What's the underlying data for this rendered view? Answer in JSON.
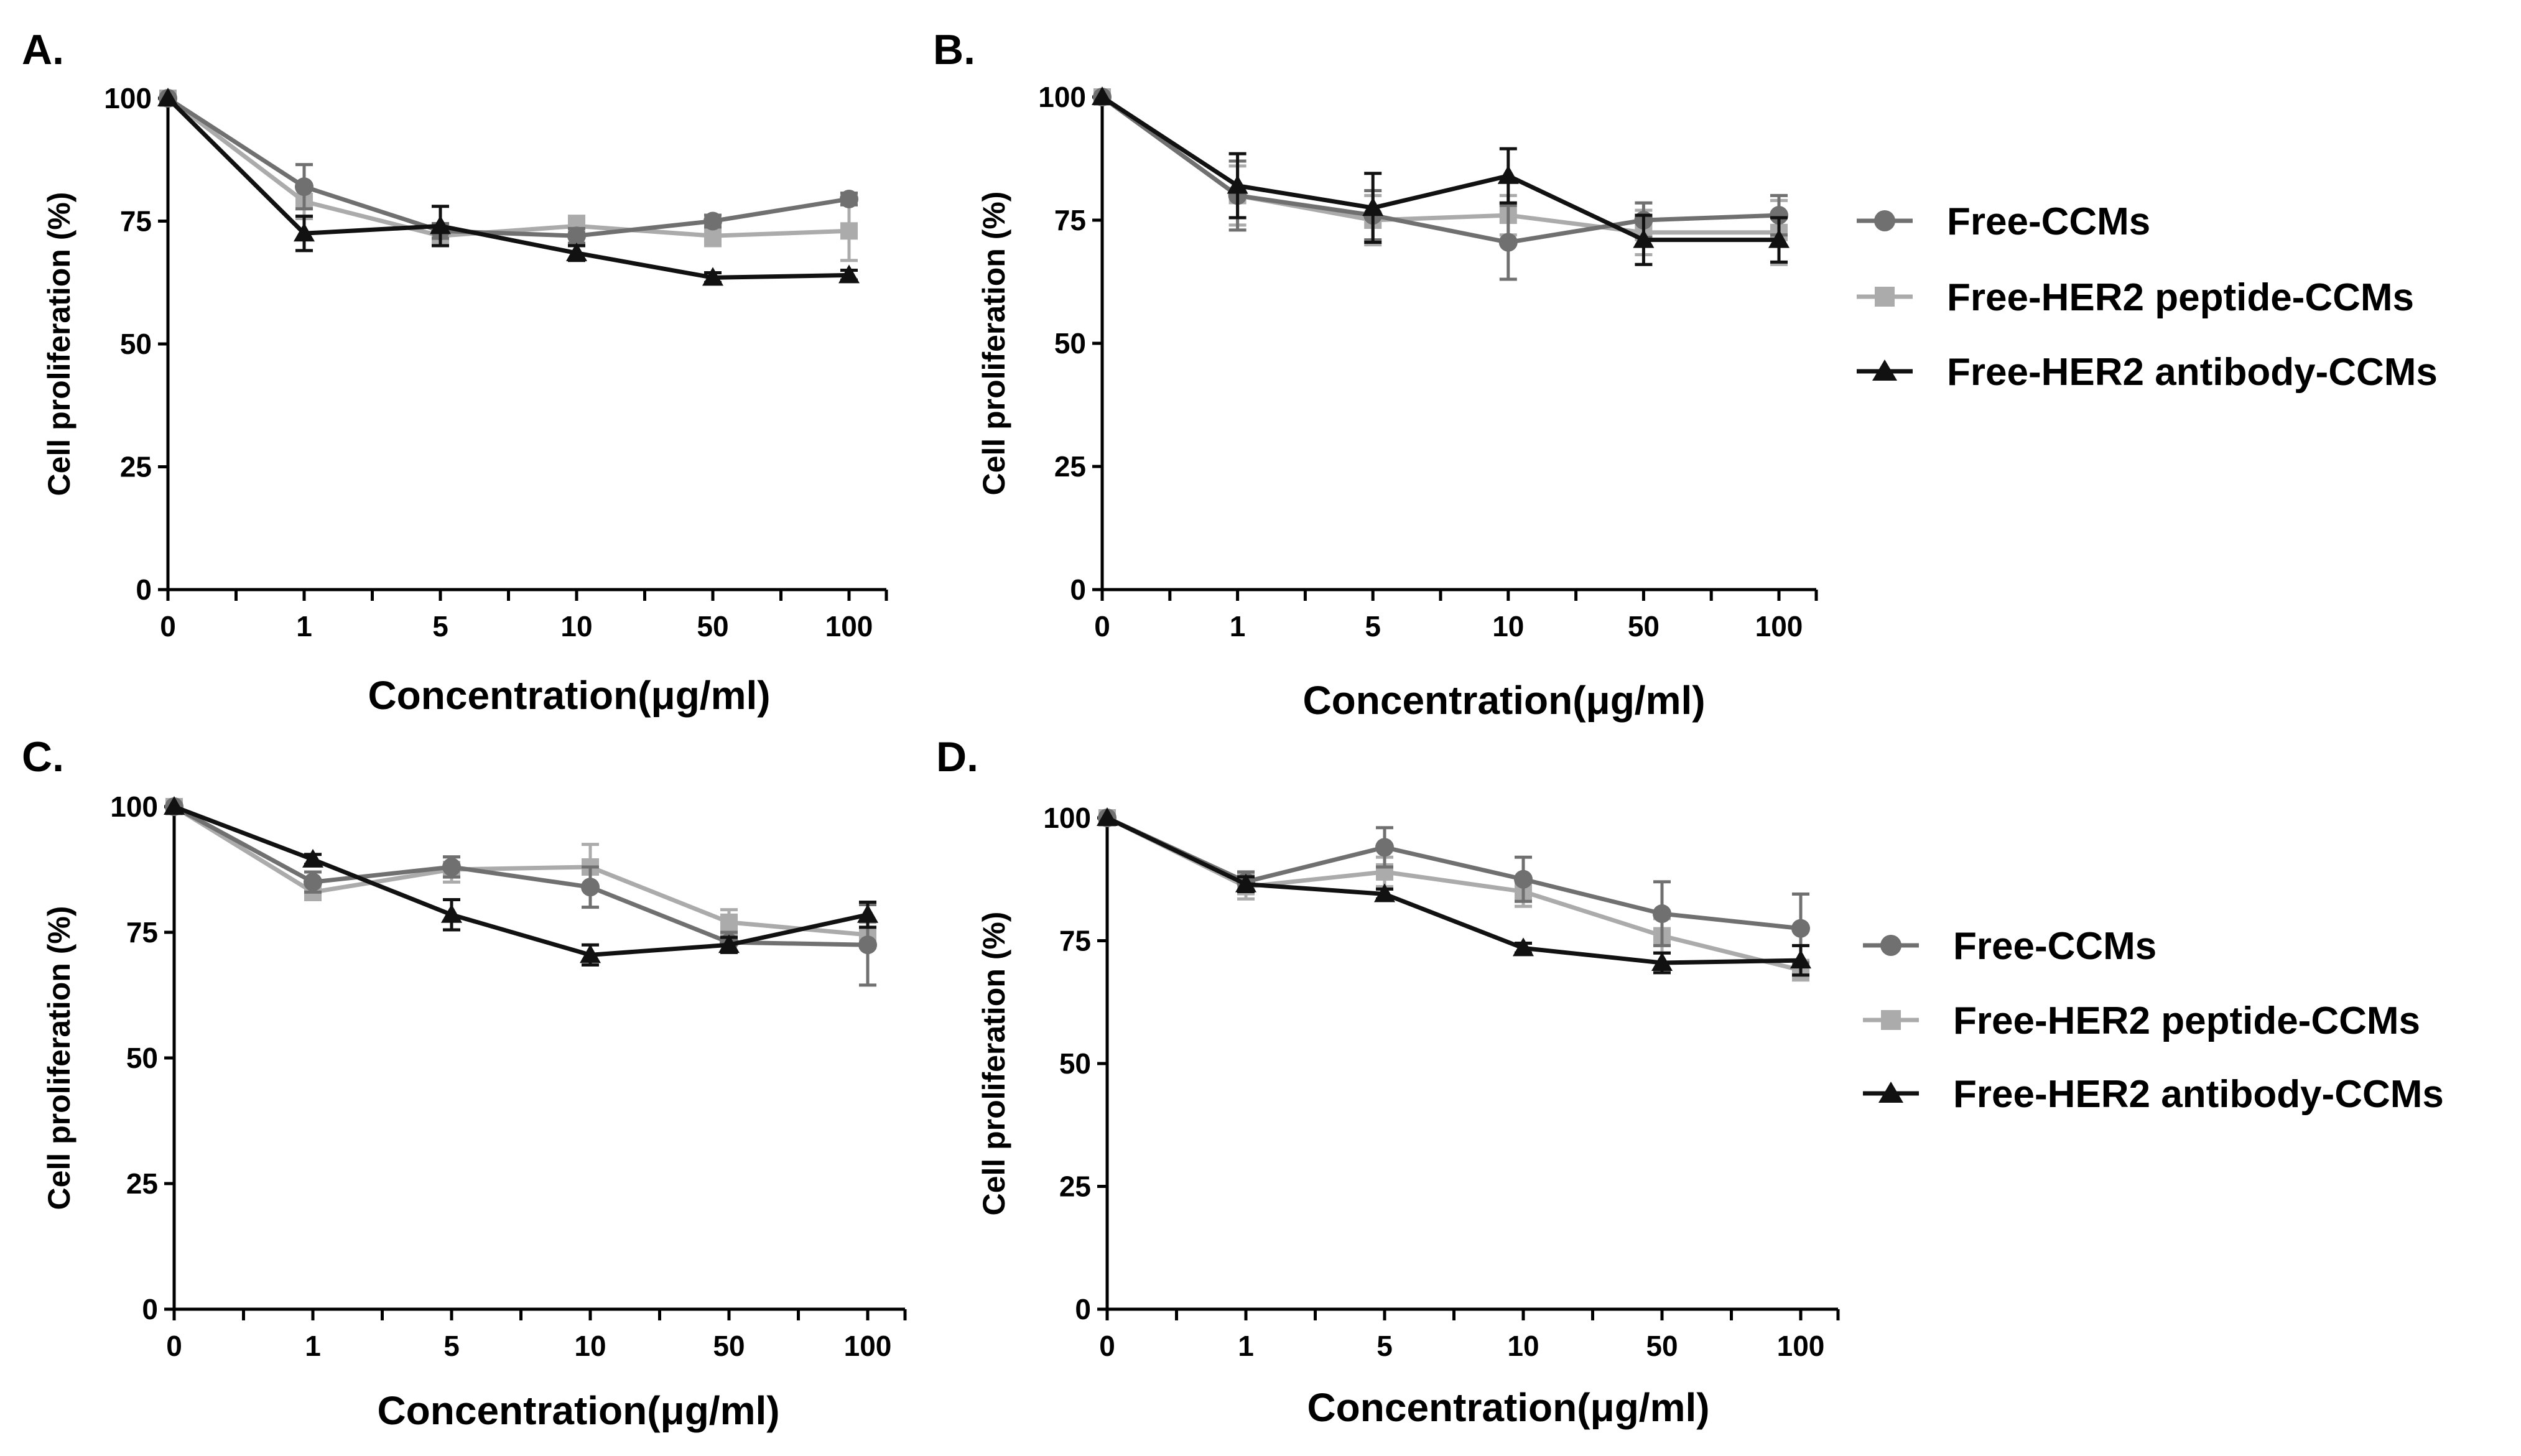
{
  "colors": {
    "free_ccms": "#707070",
    "free_her2_peptide": "#ababab",
    "free_her2_antibody": "#111111",
    "axis": "#000000"
  },
  "legends": [
    {
      "items": [
        "Free-CCMs",
        "Free-HER2 peptide-CCMs",
        "Free-HER2 antibody-CCMs"
      ]
    },
    {
      "items": [
        "Free-CCMs",
        "Free-HER2 peptide-CCMs",
        "Free-HER2 antibody-CCMs"
      ]
    }
  ],
  "chart_data": [
    {
      "type": "line",
      "panel": "A.",
      "categories": [
        "0",
        "1",
        "5",
        "10",
        "50",
        "100"
      ],
      "xlabel": "Concentration(μg/ml)",
      "ylabel": "Cell proliferation (%)",
      "ylim": [
        0,
        100
      ],
      "yticks": [
        "0",
        "25",
        "50",
        "75",
        "100"
      ],
      "series": [
        {
          "name": "Free-CCMs",
          "marker": "circle",
          "values": [
            100,
            82,
            73,
            72,
            75,
            79.5
          ],
          "errors": [
            0,
            4.5,
            1.5,
            1.5,
            1.2,
            1.2
          ]
        },
        {
          "name": "Free-HER2 peptide-CCMs",
          "marker": "square",
          "values": [
            100,
            79,
            72,
            74,
            72,
            73
          ],
          "errors": [
            0,
            3.5,
            2,
            2,
            2,
            6
          ]
        },
        {
          "name": "Free-HER2 antibody-CCMs",
          "marker": "triangle",
          "values": [
            100,
            72.5,
            74,
            68.5,
            63.5,
            64
          ],
          "errors": [
            0,
            3.5,
            4,
            1.5,
            1,
            1
          ]
        }
      ]
    },
    {
      "type": "line",
      "panel": "B.",
      "categories": [
        "0",
        "1",
        "5",
        "10",
        "50",
        "100"
      ],
      "xlabel": "Concentration(μg/ml)",
      "ylabel": "Cell proliferation (%)",
      "ylim": [
        0,
        100
      ],
      "yticks": [
        "0",
        "25",
        "50",
        "75",
        "100"
      ],
      "series": [
        {
          "name": "Free-CCMs",
          "marker": "circle",
          "values": [
            100,
            80,
            76,
            70.5,
            75,
            76
          ],
          "errors": [
            0,
            7,
            5,
            7.5,
            3.5,
            4
          ]
        },
        {
          "name": "Free-HER2 peptide-CCMs",
          "marker": "square",
          "values": [
            100,
            80,
            75,
            76,
            72.5,
            72.5
          ],
          "errors": [
            0,
            6,
            5,
            4,
            4.5,
            6.5
          ]
        },
        {
          "name": "Free-HER2 antibody-CCMs",
          "marker": "triangle",
          "values": [
            100,
            82,
            77.5,
            84,
            71,
            71
          ],
          "errors": [
            0,
            6.5,
            7,
            5.5,
            5,
            4.5
          ]
        }
      ]
    },
    {
      "type": "line",
      "panel": "C.",
      "categories": [
        "0",
        "1",
        "5",
        "10",
        "50",
        "100"
      ],
      "xlabel": "Concentration(μg/ml)",
      "ylabel": "Cell proliferation (%)",
      "ylim": [
        0,
        100
      ],
      "yticks": [
        "0",
        "25",
        "50",
        "75",
        "100"
      ],
      "series": [
        {
          "name": "Free-CCMs",
          "marker": "circle",
          "values": [
            100,
            85,
            88,
            84,
            73,
            72.5
          ],
          "errors": [
            0,
            2,
            2,
            4,
            2,
            8
          ]
        },
        {
          "name": "Free-HER2 peptide-CCMs",
          "marker": "square",
          "values": [
            100,
            83,
            87.5,
            88,
            77,
            74.5
          ],
          "errors": [
            0,
            1.5,
            2.5,
            4.5,
            2.5,
            2.5
          ]
        },
        {
          "name": "Free-HER2 antibody-CCMs",
          "marker": "triangle",
          "values": [
            100,
            89.5,
            78.5,
            70.5,
            72.5,
            78.5
          ],
          "errors": [
            0,
            1,
            3,
            2,
            1.5,
            2.5
          ]
        }
      ]
    },
    {
      "type": "line",
      "panel": "D.",
      "categories": [
        "0",
        "1",
        "5",
        "10",
        "50",
        "100"
      ],
      "xlabel": "Concentration(μg/ml)",
      "ylabel": "Cell proliferation (%)",
      "ylim": [
        0,
        100
      ],
      "yticks": [
        "0",
        "25",
        "50",
        "75",
        "100"
      ],
      "series": [
        {
          "name": "Free-CCMs",
          "marker": "circle",
          "values": [
            100,
            87,
            94,
            87.5,
            80.5,
            77.5
          ],
          "errors": [
            0,
            2,
            4,
            4.5,
            6.5,
            7
          ]
        },
        {
          "name": "Free-HER2 peptide-CCMs",
          "marker": "square",
          "values": [
            100,
            86,
            89,
            85,
            76,
            69
          ],
          "errors": [
            0,
            2.5,
            3,
            3,
            3.5,
            2
          ]
        },
        {
          "name": "Free-HER2 antibody-CCMs",
          "marker": "triangle",
          "values": [
            100,
            86.5,
            84.5,
            73.5,
            70.5,
            71
          ],
          "errors": [
            0,
            1.5,
            1,
            1,
            2,
            3
          ]
        }
      ]
    }
  ]
}
